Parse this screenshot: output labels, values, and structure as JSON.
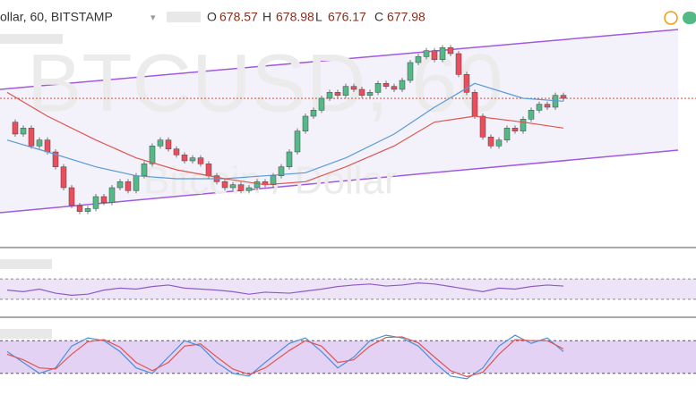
{
  "chart_data": {
    "type": "candlestick",
    "title": "ollar, 60, BITSTAMP",
    "watermark": "BTCUSD, 60",
    "watermark_subtitle": "Bitcoin / Dollar",
    "ohlc_labels": [
      "O",
      "H",
      "L",
      "C"
    ],
    "ohlc_values": [
      678.57,
      678.98,
      676.17,
      677.98
    ],
    "up_color": "#53b987",
    "down_color": "#eb4d5c",
    "ylim": [
      630,
      705
    ],
    "closes": [
      670,
      666,
      668,
      662,
      664,
      660,
      655,
      648,
      642,
      640,
      641,
      645,
      643,
      648,
      650,
      647,
      652,
      656,
      662,
      664,
      661,
      659,
      657,
      658,
      656,
      652,
      650,
      648,
      649,
      647,
      648,
      650,
      649,
      652,
      655,
      660,
      667,
      672,
      674,
      678,
      680,
      679,
      682,
      681,
      679,
      680,
      683,
      682,
      681,
      684,
      690,
      692,
      694,
      691,
      695,
      693,
      686,
      680,
      672,
      665,
      662,
      664,
      668,
      667,
      671,
      674,
      676,
      675,
      679,
      678
    ],
    "series": [
      {
        "color": "#5b9bd5",
        "values": [
          664,
          660,
          655,
          652,
          651,
          651,
          652,
          653,
          658,
          666,
          675,
          683,
          678,
          677
        ]
      },
      {
        "color": "#e0554f",
        "values": [
          680,
          672,
          664,
          658,
          654,
          651,
          649,
          650,
          655,
          662,
          670,
          672,
          670,
          668
        ]
      }
    ],
    "rsi": {
      "color": "#8e5ac8",
      "ylim": [
        0,
        100
      ],
      "bands": [
        30,
        70
      ],
      "values": [
        48,
        45,
        50,
        42,
        38,
        40,
        48,
        52,
        50,
        55,
        58,
        52,
        50,
        48,
        45,
        40,
        44,
        42,
        46,
        50,
        55,
        58,
        60,
        56,
        58,
        62,
        60,
        55,
        50,
        45,
        52,
        50,
        55,
        58,
        56
      ]
    },
    "stoch": {
      "ylim": [
        0,
        100
      ],
      "bands": [
        20,
        80
      ],
      "series": [
        {
          "color": "#4a90d9",
          "values": [
            60,
            40,
            20,
            30,
            70,
            85,
            80,
            60,
            30,
            20,
            50,
            80,
            70,
            40,
            20,
            15,
            40,
            75,
            85,
            60,
            30,
            50,
            80,
            90,
            85,
            70,
            40,
            15,
            10,
            30,
            70,
            90,
            75,
            85,
            60
          ]
        },
        {
          "color": "#e0554f",
          "values": [
            55,
            45,
            30,
            28,
            55,
            78,
            82,
            68,
            40,
            25,
            40,
            70,
            74,
            50,
            28,
            18,
            30,
            62,
            80,
            70,
            40,
            45,
            70,
            86,
            87,
            76,
            50,
            25,
            14,
            22,
            55,
            82,
            80,
            80,
            65
          ]
        }
      ]
    }
  }
}
